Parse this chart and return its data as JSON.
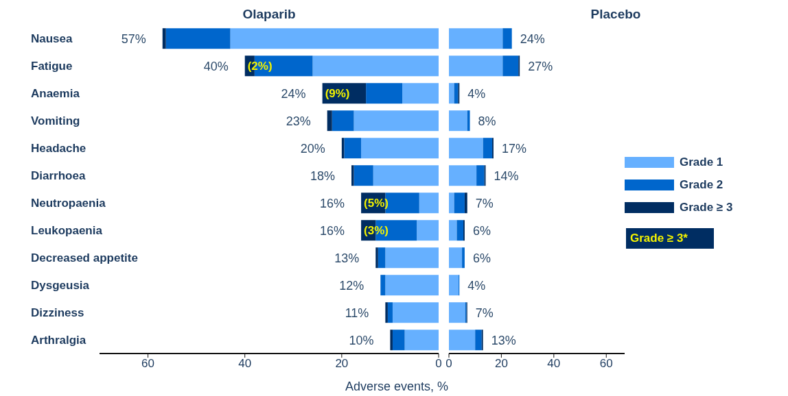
{
  "chart_data": [
    {
      "type": "bar",
      "orientation": "horizontal",
      "stacked": true,
      "title": "Olaparib",
      "xlabel": "Adverse events, %",
      "categories": [
        "Nausea",
        "Fatigue",
        "Anaemia",
        "Vomiting",
        "Headache",
        "Diarrhoea",
        "Neutropaenia",
        "Leukopaenia",
        "Decreased appetite",
        "Dysgeusia",
        "Dizziness",
        "Arthralgia"
      ],
      "series": [
        {
          "color": "#66b0ff",
          "values": [
            43,
            26,
            7.5,
            17.5,
            16,
            13.5,
            4,
            4.5,
            11,
            11,
            9.5,
            7
          ]
        },
        {
          "color": "#0066cc",
          "values": [
            13.3,
            12,
            7.5,
            4.5,
            3.5,
            4,
            7,
            8.5,
            1.5,
            1,
            1,
            2.5
          ]
        },
        {
          "color": "#002d62",
          "values": [
            0.7,
            2,
            9,
            1,
            0.5,
            0.5,
            5,
            3,
            0.5,
            null,
            0.5,
            0.5
          ],
          "value_labels": [
            null,
            "(2%)",
            "(9%)",
            null,
            null,
            null,
            "(5%)",
            "(3%)",
            null,
            null,
            null,
            null
          ]
        }
      ],
      "totals": [
        "57%",
        "40%",
        "24%",
        "23%",
        "20%",
        "18%",
        "16%",
        "16%",
        "13%",
        "12%",
        "11%",
        "10%"
      ],
      "xlim": [
        70,
        0
      ],
      "xticks": [
        60,
        40,
        20,
        0
      ],
      "legend": false
    },
    {
      "type": "bar",
      "orientation": "horizontal",
      "stacked": true,
      "title": "Placebo",
      "categories": [
        null,
        null,
        null,
        null,
        null,
        null,
        null,
        null,
        null,
        null,
        null,
        null
      ],
      "series": [
        {
          "name": "Grade 1",
          "color": "#66b0ff",
          "values": [
            20.5,
            20.5,
            2,
            7,
            13,
            10.5,
            2,
            3,
            5,
            3.7,
            6.2,
            10
          ]
        },
        {
          "name": "Grade 2",
          "color": "#0066cc",
          "values": [
            3.5,
            6,
            1.5,
            1,
            3.5,
            3,
            4,
            2.5,
            1,
            0.3,
            0.5,
            2.5
          ]
        },
        {
          "name": "Grade ≥ 3",
          "color": "#002d62",
          "values": [
            null,
            0.5,
            0.5,
            null,
            0.5,
            0.5,
            1,
            0.5,
            null,
            null,
            0.3,
            0.5
          ]
        }
      ],
      "totals": [
        "24%",
        "27%",
        "4%",
        "8%",
        "17%",
        "14%",
        "7%",
        "6%",
        "6%",
        "4%",
        "7%",
        "13%"
      ],
      "xlim": [
        0,
        67
      ],
      "xticks": [
        0,
        20,
        40,
        60
      ],
      "tick_labels": "x",
      "legend": "right",
      "annotations": [
        "Grade ≥ 3*"
      ]
    }
  ]
}
